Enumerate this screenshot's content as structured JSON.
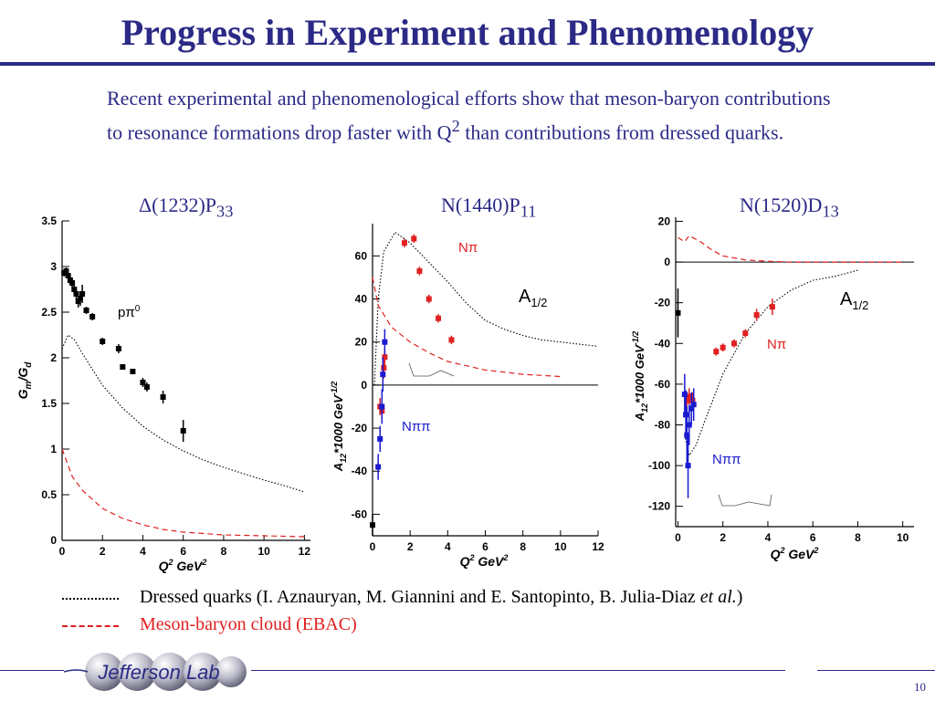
{
  "slide": {
    "title": "Progress in Experiment and Phenomenology",
    "intro": "Recent experimental and phenomenological efforts show that meson-baryon contributions to resonance formations drop faster with Q² than contributions from dressed quarks.",
    "page_number": "10",
    "logo_text": "Jefferson Lab"
  },
  "plots": [
    {
      "title_main": "Δ(1232)P",
      "title_sub": "33"
    },
    {
      "title_main": "N(1440)P",
      "title_sub": "11"
    },
    {
      "title_main": "N(1520)D",
      "title_sub": "13"
    }
  ],
  "legend": {
    "dressed": "Dressed quarks (I. Aznauryan, M. Giannini and E. Santopinto, B. Julia-Diaz ",
    "dressed_etal": "et al.",
    "dressed_end": ")",
    "meson": "Meson-baryon cloud (EBAC)"
  },
  "colors": {
    "accent": "#2b2a86",
    "meson": "#e02020",
    "npi": "#e02020",
    "npipi": "#1a1ad0"
  },
  "chart_data": [
    {
      "type": "scatter",
      "title": "Δ(1232)P33",
      "xlabel": "Q² GeV²",
      "ylabel": "Gm/Gd",
      "xlim": [
        0,
        12.3
      ],
      "ylim": [
        0,
        3.5
      ],
      "xticks": [
        "0",
        "2",
        "4",
        "6",
        "8",
        "10",
        "12"
      ],
      "yticks": [
        "0",
        "0.5",
        "1",
        "1.5",
        "2",
        "2.5",
        "3",
        "3.5"
      ],
      "annotations": [
        "pπ⁰"
      ],
      "series": [
        {
          "name": "pπ⁰",
          "points": [
            [
              0.1,
              2.93
            ],
            [
              0.2,
              2.95
            ],
            [
              0.3,
              2.9
            ],
            [
              0.4,
              2.85
            ],
            [
              0.5,
              2.82
            ],
            [
              0.6,
              2.75
            ],
            [
              0.7,
              2.7
            ],
            [
              0.8,
              2.62
            ],
            [
              0.9,
              2.65
            ],
            [
              1.0,
              2.7
            ],
            [
              1.2,
              2.52
            ],
            [
              1.5,
              2.45
            ],
            [
              2.0,
              2.18
            ],
            [
              2.8,
              2.1
            ],
            [
              3.0,
              1.9
            ],
            [
              3.5,
              1.85
            ],
            [
              4.0,
              1.73
            ],
            [
              4.2,
              1.68
            ],
            [
              5.0,
              1.57
            ],
            [
              6.0,
              1.2
            ]
          ],
          "errors": [
            0.04,
            0.04,
            0.04,
            0.04,
            0.05,
            0.06,
            0.06,
            0.07,
            0.08,
            0.1,
            0.04,
            0.04,
            0.04,
            0.05,
            0.03,
            0.03,
            0.05,
            0.05,
            0.07,
            0.12
          ]
        },
        {
          "name": "Dressed quarks",
          "style": "dotted",
          "points": [
            [
              0.0,
              2.1
            ],
            [
              0.3,
              2.25
            ],
            [
              0.6,
              2.2
            ],
            [
              1,
              2.05
            ],
            [
              2,
              1.7
            ],
            [
              3,
              1.45
            ],
            [
              4,
              1.25
            ],
            [
              5,
              1.1
            ],
            [
              6,
              0.98
            ],
            [
              7,
              0.88
            ],
            [
              8,
              0.8
            ],
            [
              9,
              0.73
            ],
            [
              10,
              0.66
            ],
            [
              11,
              0.6
            ],
            [
              12,
              0.53
            ]
          ]
        },
        {
          "name": "Meson-baryon cloud",
          "style": "dashed",
          "points": [
            [
              0.0,
              1.0
            ],
            [
              0.5,
              0.7
            ],
            [
              1,
              0.55
            ],
            [
              2,
              0.35
            ],
            [
              3,
              0.24
            ],
            [
              4,
              0.17
            ],
            [
              5,
              0.12
            ],
            [
              6,
              0.09
            ],
            [
              8,
              0.06
            ],
            [
              10,
              0.05
            ],
            [
              12,
              0.04
            ]
          ]
        }
      ]
    },
    {
      "type": "scatter",
      "title": "N(1440)P11",
      "xlabel": "Q² GeV²",
      "ylabel": "A12*1000 GeV^-1/2",
      "xlim": [
        0,
        12
      ],
      "ylim": [
        -70,
        75
      ],
      "xticks": [
        "0",
        "2",
        "4",
        "6",
        "8",
        "10",
        "12"
      ],
      "yticks": [
        "-60",
        "-40",
        "-20",
        "0",
        "20",
        "40",
        "60"
      ],
      "annotations": [
        "Nπ",
        "Nππ",
        "A1/2"
      ],
      "series": [
        {
          "name": "Nπ",
          "points": [
            [
              0.4,
              -10
            ],
            [
              0.5,
              -12
            ],
            [
              0.6,
              8
            ],
            [
              0.65,
              13
            ],
            [
              1.7,
              66
            ],
            [
              2.2,
              68
            ],
            [
              2.5,
              53
            ],
            [
              3.0,
              40
            ],
            [
              3.5,
              31
            ],
            [
              4.2,
              21
            ]
          ],
          "errors": [
            4,
            4,
            5,
            4,
            2,
            2,
            2,
            2,
            2,
            2
          ]
        },
        {
          "name": "Nππ",
          "points": [
            [
              0.3,
              -38
            ],
            [
              0.4,
              -25
            ],
            [
              0.5,
              -10
            ],
            [
              0.55,
              5
            ],
            [
              0.65,
              20
            ]
          ],
          "errors": [
            6,
            6,
            8,
            8,
            6
          ]
        },
        {
          "name": "other",
          "points": [
            [
              0.0,
              -65
            ]
          ],
          "errors": [
            5
          ]
        },
        {
          "name": "Dressed quarks",
          "style": "dotted",
          "points": [
            [
              0.1,
              0
            ],
            [
              0.3,
              40
            ],
            [
              0.6,
              62
            ],
            [
              1.2,
              71
            ],
            [
              2,
              66
            ],
            [
              3,
              57
            ],
            [
              4,
              48
            ],
            [
              5,
              38
            ],
            [
              6,
              30
            ],
            [
              7,
              26
            ],
            [
              8,
              23
            ],
            [
              9,
              21
            ],
            [
              10,
              20
            ],
            [
              11,
              19
            ],
            [
              12,
              18
            ]
          ]
        },
        {
          "name": "Meson-baryon cloud",
          "style": "dashed",
          "points": [
            [
              0,
              50
            ],
            [
              0.3,
              37
            ],
            [
              1,
              27
            ],
            [
              2,
              20
            ],
            [
              3,
              15
            ],
            [
              4,
              11
            ],
            [
              5,
              9
            ],
            [
              6,
              7
            ],
            [
              7,
              6
            ],
            [
              8,
              5
            ],
            [
              9,
              4.5
            ],
            [
              10,
              4
            ]
          ]
        }
      ]
    },
    {
      "type": "scatter",
      "title": "N(1520)D13",
      "xlabel": "Q² GeV²",
      "ylabel": "A12*1000 GeV^-1/2",
      "xlim": [
        -0.1,
        10.5
      ],
      "ylim": [
        -130,
        22
      ],
      "xticks": [
        "0",
        "2",
        "4",
        "6",
        "8",
        "10"
      ],
      "yticks": [
        "-120",
        "-100",
        "-80",
        "-60",
        "-40",
        "-20",
        "0",
        "20"
      ],
      "annotations": [
        "Nπ",
        "Nππ",
        "A1/2"
      ],
      "series": [
        {
          "name": "Nπ",
          "points": [
            [
              0.4,
              -68
            ],
            [
              0.5,
              -66
            ],
            [
              0.65,
              -68
            ],
            [
              1.7,
              -44
            ],
            [
              2.0,
              -42
            ],
            [
              2.5,
              -40
            ],
            [
              3.0,
              -35
            ],
            [
              3.5,
              -26
            ],
            [
              4.2,
              -22
            ]
          ],
          "errors": [
            4,
            4,
            4,
            2,
            2,
            2,
            2,
            3,
            4
          ]
        },
        {
          "name": "Nππ",
          "points": [
            [
              0.3,
              -65
            ],
            [
              0.35,
              -75
            ],
            [
              0.4,
              -85
            ],
            [
              0.45,
              -100
            ],
            [
              0.5,
              -80
            ],
            [
              0.6,
              -72
            ],
            [
              0.7,
              -70
            ]
          ],
          "errors": [
            10,
            12,
            14,
            16,
            10,
            8,
            8
          ]
        },
        {
          "name": "other",
          "points": [
            [
              0.0,
              -25
            ]
          ],
          "errors": [
            12
          ]
        },
        {
          "name": "Dressed quarks",
          "style": "dotted",
          "points": [
            [
              0.3,
              -85
            ],
            [
              0.5,
              -95
            ],
            [
              0.8,
              -90
            ],
            [
              1.2,
              -78
            ],
            [
              2,
              -55
            ],
            [
              3,
              -35
            ],
            [
              4,
              -22
            ],
            [
              5,
              -14
            ],
            [
              6,
              -9
            ],
            [
              7,
              -7
            ],
            [
              8,
              -4
            ]
          ]
        },
        {
          "name": "Meson-baryon cloud",
          "style": "dashed",
          "points": [
            [
              0,
              12
            ],
            [
              0.3,
              10
            ],
            [
              0.5,
              13
            ],
            [
              1,
              10
            ],
            [
              1.5,
              6
            ],
            [
              2,
              3
            ],
            [
              3,
              1
            ],
            [
              4,
              0.4
            ],
            [
              5,
              0
            ],
            [
              6,
              0
            ],
            [
              8,
              0
            ],
            [
              10,
              0
            ]
          ]
        }
      ]
    }
  ]
}
